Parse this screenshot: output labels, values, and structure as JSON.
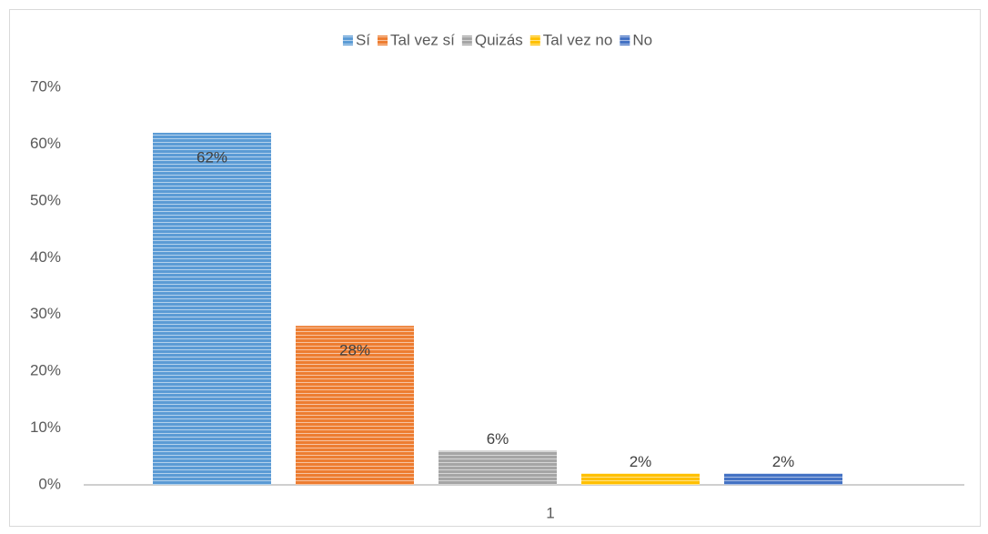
{
  "chart_data": {
    "type": "bar",
    "categories": [
      "1"
    ],
    "series": [
      {
        "name": "Sí",
        "color": "#5b9bd5",
        "values": [
          62
        ],
        "value_labels": [
          "62%"
        ]
      },
      {
        "name": "Tal vez sí",
        "color": "#ed7d31",
        "values": [
          28
        ],
        "value_labels": [
          "28%"
        ]
      },
      {
        "name": "Quizás",
        "color": "#a5a5a5",
        "values": [
          6
        ],
        "value_labels": [
          "6%"
        ]
      },
      {
        "name": "Tal vez no",
        "color": "#ffc000",
        "values": [
          2
        ],
        "value_labels": [
          "2%"
        ]
      },
      {
        "name": "No",
        "color": "#4472c4",
        "values": [
          2
        ],
        "value_labels": [
          "2%"
        ]
      }
    ],
    "ylim": [
      0,
      70
    ],
    "yticks": [
      {
        "value": 0,
        "label": "0%"
      },
      {
        "value": 10,
        "label": "10%"
      },
      {
        "value": 20,
        "label": "20%"
      },
      {
        "value": 30,
        "label": "30%"
      },
      {
        "value": 40,
        "label": "40%"
      },
      {
        "value": 50,
        "label": "50%"
      },
      {
        "value": 60,
        "label": "60%"
      },
      {
        "value": 70,
        "label": "70%"
      }
    ],
    "grid": false,
    "legend": "top"
  }
}
